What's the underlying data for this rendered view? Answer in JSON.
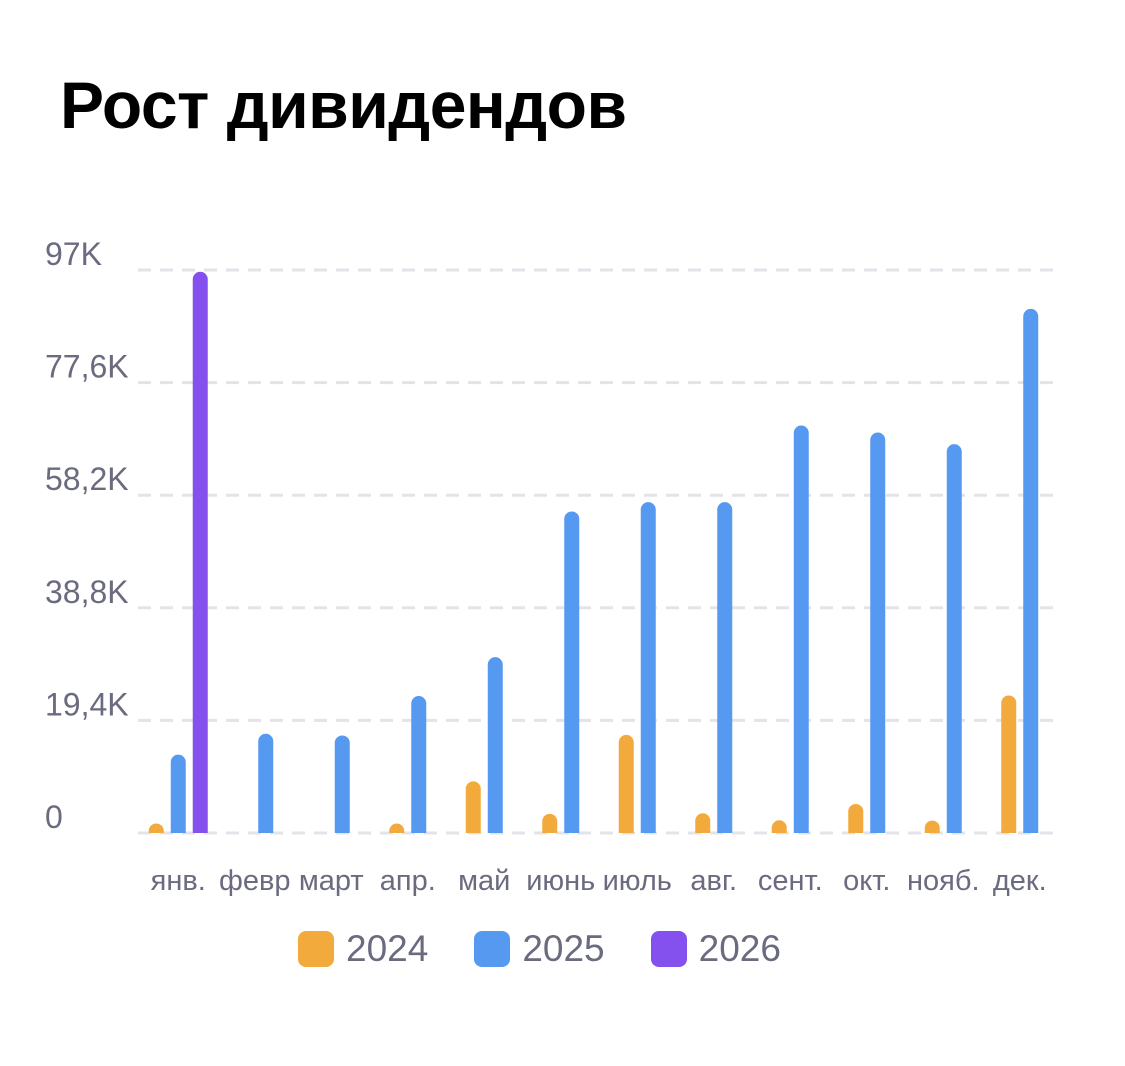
{
  "chart_data": {
    "type": "bar",
    "title": "Рост дивидендов",
    "categories": [
      "янв.",
      "февр",
      "март",
      "апр.",
      "май",
      "июнь",
      "июль",
      "авг.",
      "сент.",
      "окт.",
      "нояб.",
      "дек."
    ],
    "series": [
      {
        "name": "2024",
        "color": "#F2AA3C",
        "values": [
          700,
          0,
          0,
          150,
          8900,
          3300,
          16900,
          3400,
          1800,
          5000,
          1700,
          23700
        ]
      },
      {
        "name": "2025",
        "color": "#5599F0",
        "values": [
          13500,
          17100,
          16800,
          23600,
          30300,
          55400,
          57000,
          57000,
          70200,
          69000,
          67000,
          90300
        ]
      },
      {
        "name": "2026",
        "color": "#8450EE",
        "values": [
          96700,
          null,
          null,
          null,
          null,
          null,
          null,
          null,
          null,
          null,
          null,
          null
        ]
      }
    ],
    "yticks": [
      "0",
      "19,4K",
      "38,8K",
      "58,2K",
      "77,6K",
      "97K"
    ],
    "ylim": [
      0,
      97000
    ],
    "grid": true,
    "legend_position": "bottom"
  }
}
